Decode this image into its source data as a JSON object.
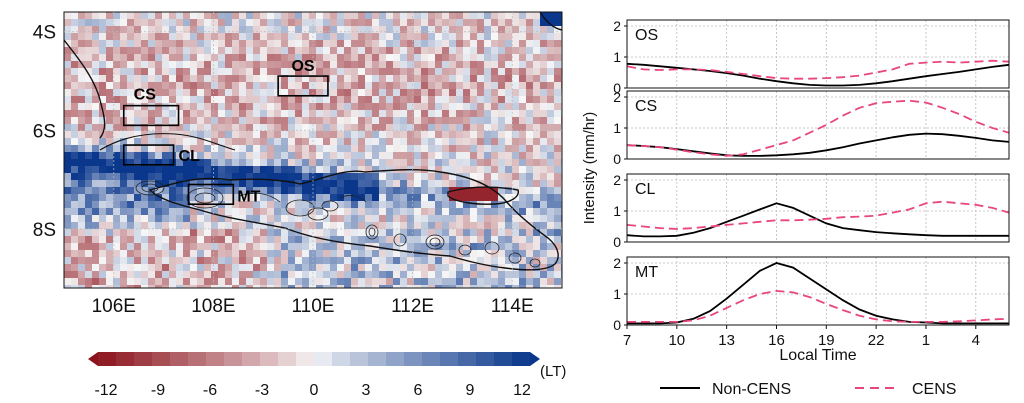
{
  "map": {
    "lat_labels": [
      "4S",
      "6S",
      "8S"
    ],
    "lon_labels": [
      "106E",
      "108E",
      "110E",
      "112E",
      "114E"
    ],
    "lat_range": [
      -9.2,
      -3.6
    ],
    "lon_range": [
      105,
      115
    ],
    "region_boxes": [
      {
        "label": "OS",
        "lon": [
          109.3,
          110.3
        ],
        "lat": [
          -5.3,
          -4.9
        ]
      },
      {
        "label": "CS",
        "lon": [
          106.2,
          107.3
        ],
        "lat": [
          -5.9,
          -5.5
        ]
      },
      {
        "label": "CL",
        "lon": [
          106.2,
          107.2
        ],
        "lat": [
          -6.7,
          -6.3
        ]
      },
      {
        "label": "MT",
        "lon": [
          107.5,
          108.4
        ],
        "lat": [
          -7.5,
          -7.1
        ]
      }
    ],
    "colorbar": {
      "ticks": [
        "-12",
        "-9",
        "-6",
        "-3",
        "0",
        "3",
        "6",
        "9",
        "12"
      ],
      "unit": "(LT)",
      "min": -12,
      "max": 12
    }
  },
  "chart_data": [
    {
      "type": "line",
      "panel": "OS",
      "x": [
        7,
        8,
        9,
        10,
        11,
        12,
        13,
        14,
        15,
        16,
        17,
        18,
        19,
        20,
        21,
        22,
        23,
        24,
        25,
        26,
        27,
        28,
        29,
        30
      ],
      "series": [
        {
          "name": "Non-CENS",
          "values": [
            0.78,
            0.75,
            0.7,
            0.65,
            0.6,
            0.55,
            0.48,
            0.4,
            0.3,
            0.22,
            0.15,
            0.1,
            0.08,
            0.08,
            0.1,
            0.15,
            0.22,
            0.3,
            0.38,
            0.45,
            0.52,
            0.6,
            0.68,
            0.75
          ],
          "color": "#000000",
          "style": "solid"
        },
        {
          "name": "CENS",
          "values": [
            0.7,
            0.6,
            0.58,
            0.6,
            0.6,
            0.58,
            0.52,
            0.45,
            0.38,
            0.32,
            0.3,
            0.3,
            0.32,
            0.35,
            0.4,
            0.5,
            0.6,
            0.78,
            0.82,
            0.85,
            0.82,
            0.85,
            0.88,
            0.85
          ],
          "color": "#e8467c",
          "style": "dashed"
        }
      ],
      "ylim": [
        0,
        2
      ],
      "yticks": [
        0,
        1,
        2
      ]
    },
    {
      "type": "line",
      "panel": "CS",
      "x": [
        7,
        8,
        9,
        10,
        11,
        12,
        13,
        14,
        15,
        16,
        17,
        18,
        19,
        20,
        21,
        22,
        23,
        24,
        25,
        26,
        27,
        28,
        29,
        30
      ],
      "series": [
        {
          "name": "Non-CENS",
          "values": [
            0.45,
            0.42,
            0.38,
            0.32,
            0.25,
            0.18,
            0.12,
            0.1,
            0.1,
            0.12,
            0.15,
            0.2,
            0.28,
            0.38,
            0.5,
            0.6,
            0.7,
            0.78,
            0.82,
            0.8,
            0.75,
            0.68,
            0.6,
            0.55
          ],
          "color": "#000000",
          "style": "solid"
        },
        {
          "name": "CENS",
          "values": [
            0.45,
            0.42,
            0.38,
            0.3,
            0.22,
            0.15,
            0.1,
            0.15,
            0.3,
            0.45,
            0.6,
            0.85,
            1.1,
            1.4,
            1.65,
            1.8,
            1.85,
            1.88,
            1.82,
            1.65,
            1.45,
            1.2,
            1.0,
            0.85
          ],
          "color": "#e8467c",
          "style": "dashed"
        }
      ],
      "ylim": [
        0,
        2
      ],
      "yticks": [
        0,
        1,
        2
      ]
    },
    {
      "type": "line",
      "panel": "CL",
      "x": [
        7,
        8,
        9,
        10,
        11,
        12,
        13,
        14,
        15,
        16,
        17,
        18,
        19,
        20,
        21,
        22,
        23,
        24,
        25,
        26,
        27,
        28,
        29,
        30
      ],
      "series": [
        {
          "name": "Non-CENS",
          "values": [
            0.22,
            0.18,
            0.18,
            0.2,
            0.3,
            0.45,
            0.65,
            0.85,
            1.05,
            1.25,
            1.1,
            0.85,
            0.6,
            0.45,
            0.38,
            0.32,
            0.28,
            0.25,
            0.22,
            0.2,
            0.2,
            0.2,
            0.2,
            0.2
          ],
          "color": "#000000",
          "style": "solid"
        },
        {
          "name": "CENS",
          "values": [
            0.55,
            0.5,
            0.45,
            0.42,
            0.45,
            0.5,
            0.55,
            0.6,
            0.65,
            0.7,
            0.7,
            0.72,
            0.75,
            0.8,
            0.82,
            0.85,
            0.95,
            1.05,
            1.25,
            1.3,
            1.25,
            1.2,
            1.1,
            0.95
          ],
          "color": "#e8467c",
          "style": "dashed"
        }
      ],
      "ylim": [
        0,
        2
      ],
      "yticks": [
        0,
        1,
        2
      ]
    },
    {
      "type": "line",
      "panel": "MT",
      "x": [
        7,
        8,
        9,
        10,
        11,
        12,
        13,
        14,
        15,
        16,
        17,
        18,
        19,
        20,
        21,
        22,
        23,
        24,
        25,
        26,
        27,
        28,
        29,
        30
      ],
      "series": [
        {
          "name": "Non-CENS",
          "values": [
            0.05,
            0.05,
            0.05,
            0.08,
            0.2,
            0.45,
            0.85,
            1.3,
            1.75,
            2.0,
            1.85,
            1.5,
            1.15,
            0.8,
            0.5,
            0.3,
            0.18,
            0.1,
            0.08,
            0.05,
            0.05,
            0.05,
            0.05,
            0.05
          ],
          "color": "#000000",
          "style": "solid"
        },
        {
          "name": "CENS",
          "values": [
            0.1,
            0.1,
            0.1,
            0.1,
            0.15,
            0.3,
            0.55,
            0.8,
            1.0,
            1.1,
            1.05,
            0.9,
            0.68,
            0.48,
            0.3,
            0.18,
            0.12,
            0.1,
            0.1,
            0.1,
            0.12,
            0.15,
            0.18,
            0.2
          ],
          "color": "#e8467c",
          "style": "dashed"
        }
      ],
      "ylim": [
        0,
        2
      ],
      "yticks": [
        0,
        1,
        2
      ]
    }
  ],
  "timeseries": {
    "xticks": [
      "7",
      "10",
      "13",
      "16",
      "19",
      "22",
      "1",
      "4"
    ],
    "xtick_values": [
      7,
      10,
      13,
      16,
      19,
      22,
      25,
      28
    ],
    "xlabel": "Local Time",
    "ylabel": "Intensity (mm/hr)",
    "xlim": [
      7,
      30
    ]
  },
  "legend": [
    {
      "label": "Non-CENS",
      "color": "#000000",
      "style": "solid"
    },
    {
      "label": "CENS",
      "color": "#e8467c",
      "style": "dashed"
    }
  ]
}
